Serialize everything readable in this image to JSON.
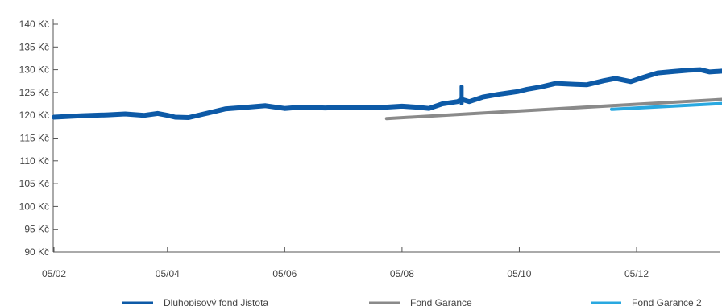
{
  "chart_data": {
    "type": "line",
    "title": "",
    "xlabel": "",
    "ylabel": "",
    "currency_suffix": "Kč",
    "ylim": [
      90,
      140
    ],
    "y_ticks": [
      90,
      95,
      100,
      105,
      110,
      115,
      120,
      125,
      130,
      135,
      140
    ],
    "y_tick_labels": [
      "90 Kč",
      "95 Kč",
      "100 Kč",
      "105 Kč",
      "110 Kč",
      "115 Kč",
      "120 Kč",
      "125 Kč",
      "130 Kč",
      "135 Kč",
      "140 Kč"
    ],
    "x_tick_labels": [
      "05/02",
      "05/04",
      "05/06",
      "05/08",
      "05/10",
      "05/12"
    ],
    "x_tick_dates": [
      "2005-02-01",
      "2005-04-01",
      "2005-06-01",
      "2005-08-01",
      "2005-10-01",
      "2005-12-01"
    ],
    "xlim": [
      "2005-02-01",
      "2006-01-15"
    ],
    "grid": false,
    "legend_position": "bottom",
    "series": [
      {
        "name": "Dluhopisový fond Jistota",
        "color": "#0d5aa7",
        "points": [
          [
            "2005-02-01",
            119.6
          ],
          [
            "2005-02-15",
            119.9
          ],
          [
            "2005-03-01",
            120.1
          ],
          [
            "2005-03-10",
            120.3
          ],
          [
            "2005-03-20",
            120.0
          ],
          [
            "2005-03-27",
            120.4
          ],
          [
            "2005-04-01",
            120.0
          ],
          [
            "2005-04-05",
            119.6
          ],
          [
            "2005-04-12",
            119.5
          ],
          [
            "2005-04-22",
            120.5
          ],
          [
            "2005-05-01",
            121.4
          ],
          [
            "2005-05-10",
            121.7
          ],
          [
            "2005-05-22",
            122.1
          ],
          [
            "2005-06-01",
            121.5
          ],
          [
            "2005-06-10",
            121.8
          ],
          [
            "2005-06-22",
            121.6
          ],
          [
            "2005-07-05",
            121.8
          ],
          [
            "2005-07-20",
            121.7
          ],
          [
            "2005-08-01",
            122.0
          ],
          [
            "2005-08-08",
            121.8
          ],
          [
            "2005-08-15",
            121.5
          ],
          [
            "2005-08-22",
            122.5
          ],
          [
            "2005-08-30",
            123.0
          ],
          [
            "2005-09-01",
            123.5
          ],
          [
            "2005-09-05",
            123.0
          ],
          [
            "2005-09-12",
            124.0
          ],
          [
            "2005-09-20",
            124.6
          ],
          [
            "2005-09-30",
            125.2
          ],
          [
            "2005-10-05",
            125.7
          ],
          [
            "2005-10-12",
            126.2
          ],
          [
            "2005-10-20",
            127.0
          ],
          [
            "2005-10-30",
            126.8
          ],
          [
            "2005-11-05",
            126.7
          ],
          [
            "2005-11-14",
            127.6
          ],
          [
            "2005-11-20",
            128.1
          ],
          [
            "2005-11-28",
            127.4
          ],
          [
            "2005-12-05",
            128.4
          ],
          [
            "2005-12-12",
            129.3
          ],
          [
            "2005-12-20",
            129.6
          ],
          [
            "2005-12-28",
            129.9
          ],
          [
            "2006-01-03",
            130.0
          ],
          [
            "2006-01-08",
            129.5
          ],
          [
            "2006-01-15",
            129.7
          ]
        ]
      },
      {
        "name": "Fond Garance",
        "color": "#8a8a8a",
        "points": [
          [
            "2005-07-24",
            119.3
          ],
          [
            "2006-01-15",
            123.5
          ]
        ]
      },
      {
        "name": "Fond Garance 2",
        "color": "#29a8e0",
        "points": [
          [
            "2005-11-18",
            121.3
          ],
          [
            "2006-01-15",
            122.6
          ]
        ]
      }
    ]
  }
}
